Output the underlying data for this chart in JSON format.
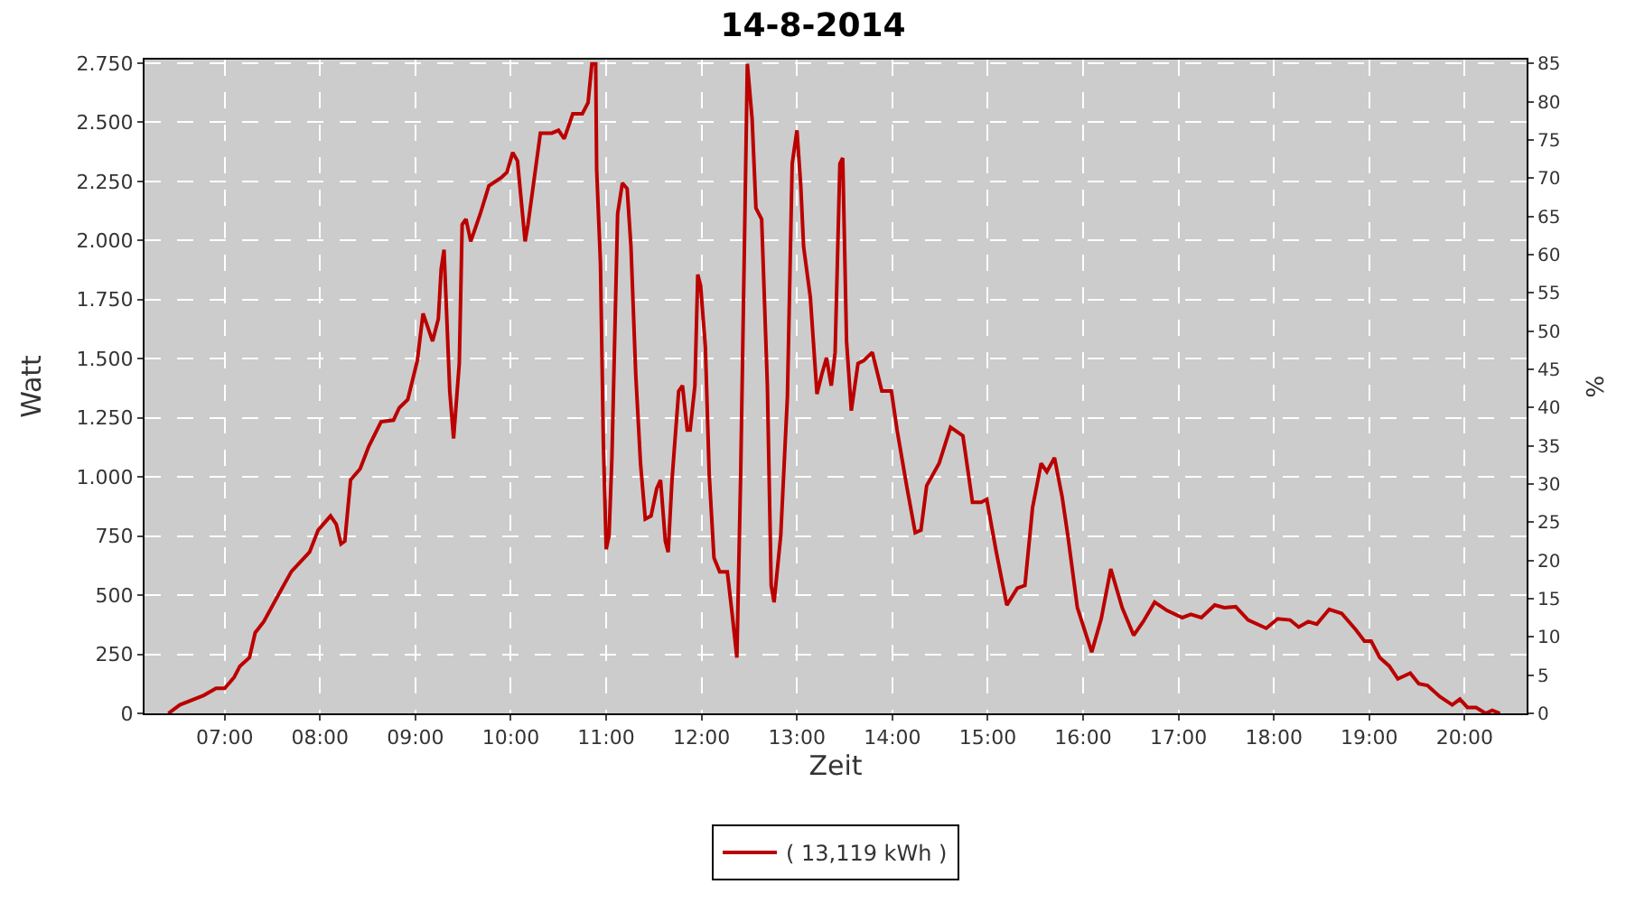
{
  "chart_data": {
    "type": "line",
    "title": "14-8-2014",
    "xlabel": "Zeit",
    "ylabel": "Watt",
    "y2label": "%",
    "xlim": [
      6.16,
      20.65
    ],
    "xticks": [
      {
        "value": 7,
        "label": "07:00"
      },
      {
        "value": 8,
        "label": "08:00"
      },
      {
        "value": 9,
        "label": "09:00"
      },
      {
        "value": 10,
        "label": "10:00"
      },
      {
        "value": 11,
        "label": "11:00"
      },
      {
        "value": 12,
        "label": "12:00"
      },
      {
        "value": 13,
        "label": "13:00"
      },
      {
        "value": 14,
        "label": "14:00"
      },
      {
        "value": 15,
        "label": "15:00"
      },
      {
        "value": 16,
        "label": "16:00"
      },
      {
        "value": 17,
        "label": "17:00"
      },
      {
        "value": 18,
        "label": "18:00"
      },
      {
        "value": 19,
        "label": "19:00"
      },
      {
        "value": 20,
        "label": "20:00"
      }
    ],
    "ylim": [
      0,
      2765
    ],
    "yticks": [
      0,
      250,
      500,
      750,
      {
        "value": 1000,
        "label": "1.000"
      },
      {
        "value": 1250,
        "label": "1.250"
      },
      {
        "value": 1500,
        "label": "1.500"
      },
      {
        "value": 1750,
        "label": "1.750"
      },
      {
        "value": 2000,
        "label": "2.000"
      },
      {
        "value": 2250,
        "label": "2.250"
      },
      {
        "value": 2500,
        "label": "2.500"
      },
      {
        "value": 2750,
        "label": "2.750"
      }
    ],
    "y2lim": [
      0,
      85.5
    ],
    "y2ticks": [
      0,
      5,
      10,
      15,
      20,
      25,
      30,
      35,
      40,
      45,
      50,
      55,
      60,
      65,
      70,
      75,
      80,
      85
    ],
    "grid": true,
    "legend": "bottom",
    "marker": "none",
    "line_style": "solid",
    "series": [
      {
        "name": "( 13,119 kWh )",
        "color": "#bb0000",
        "x": [
          6.41,
          6.53,
          6.78,
          6.91,
          7.0,
          7.1,
          7.16,
          7.26,
          7.32,
          7.41,
          7.57,
          7.7,
          7.89,
          7.98,
          8.11,
          8.17,
          8.22,
          8.26,
          8.32,
          8.42,
          8.51,
          8.64,
          8.77,
          8.83,
          8.92,
          9.02,
          9.08,
          9.18,
          9.24,
          9.27,
          9.3,
          9.36,
          9.4,
          9.46,
          9.49,
          9.53,
          9.58,
          9.68,
          9.77,
          9.9,
          9.96,
          10.02,
          10.07,
          10.15,
          10.18,
          10.31,
          10.43,
          10.5,
          10.56,
          10.65,
          10.75,
          10.81,
          10.85,
          10.89,
          10.9,
          10.94,
          10.97,
          11.0,
          11.03,
          11.06,
          11.12,
          11.17,
          11.22,
          11.26,
          11.31,
          11.36,
          11.41,
          11.47,
          11.53,
          11.57,
          11.62,
          11.65,
          11.69,
          11.76,
          11.8,
          11.85,
          11.88,
          11.93,
          11.96,
          11.99,
          12.04,
          12.08,
          12.13,
          12.19,
          12.27,
          12.32,
          12.37,
          12.41,
          12.45,
          12.48,
          12.53,
          12.57,
          12.63,
          12.69,
          12.73,
          12.76,
          12.83,
          12.9,
          12.95,
          13.0,
          13.04,
          13.07,
          13.14,
          13.21,
          13.26,
          13.31,
          13.36,
          13.4,
          13.45,
          13.48,
          13.52,
          13.57,
          13.64,
          13.7,
          13.79,
          13.89,
          13.99,
          14.05,
          14.15,
          14.24,
          14.3,
          14.36,
          14.49,
          14.61,
          14.74,
          14.84,
          14.93,
          14.99,
          15.09,
          15.2,
          15.31,
          15.39,
          15.47,
          15.56,
          15.62,
          15.7,
          15.78,
          15.84,
          15.94,
          16.09,
          16.19,
          16.29,
          16.41,
          16.53,
          16.63,
          16.75,
          16.88,
          17.04,
          17.13,
          17.24,
          17.38,
          17.48,
          17.6,
          17.73,
          17.92,
          18.04,
          18.17,
          18.26,
          18.36,
          18.45,
          18.58,
          18.71,
          18.86,
          18.95,
          19.02,
          19.11,
          19.21,
          19.3,
          19.43,
          19.52,
          19.61,
          19.74,
          19.87,
          19.95,
          20.03,
          20.12,
          20.22,
          20.29,
          20.37
        ],
        "values": [
          0,
          36,
          76,
          106,
          106,
          153,
          200,
          236,
          341,
          388,
          506,
          600,
          682,
          775,
          835,
          800,
          717,
          729,
          987,
          1034,
          1128,
          1233,
          1240,
          1292,
          1327,
          1492,
          1691,
          1574,
          1668,
          1879,
          1961,
          1363,
          1163,
          1480,
          2067,
          2090,
          1996,
          2113,
          2231,
          2266,
          2289,
          2372,
          2337,
          1996,
          2067,
          2454,
          2454,
          2466,
          2430,
          2536,
          2536,
          2583,
          2747,
          2747,
          2301,
          1902,
          1151,
          694,
          752,
          1081,
          2113,
          2243,
          2219,
          1973,
          1433,
          1057,
          822,
          835,
          951,
          987,
          729,
          682,
          987,
          1363,
          1386,
          1198,
          1198,
          1386,
          1856,
          1808,
          1550,
          1011,
          658,
          599,
          599,
          423,
          236,
          1011,
          1996,
          2747,
          2513,
          2137,
          2090,
          1386,
          541,
          470,
          752,
          1339,
          2325,
          2466,
          2231,
          1973,
          1761,
          1351,
          1433,
          1504,
          1386,
          1527,
          2325,
          2349,
          1574,
          1280,
          1480,
          1492,
          1527,
          1363,
          1363,
          1198,
          963,
          764,
          775,
          963,
          1057,
          1210,
          1174,
          893,
          893,
          905,
          682,
          458,
          529,
          541,
          870,
          1057,
          1022,
          1081,
          916,
          752,
          447,
          259,
          400,
          611,
          447,
          330,
          388,
          470,
          435,
          405,
          419,
          405,
          458,
          447,
          451,
          395,
          360,
          400,
          395,
          365,
          388,
          377,
          440,
          423,
          353,
          306,
          306,
          236,
          200,
          146,
          170,
          125,
          118,
          71,
          36,
          60,
          25,
          25,
          0,
          13,
          0
        ]
      }
    ]
  }
}
